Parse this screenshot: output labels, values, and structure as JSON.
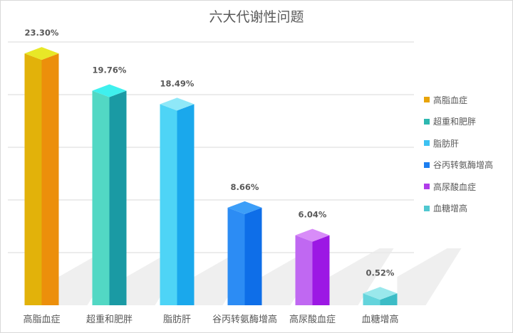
{
  "chart_data": {
    "type": "bar",
    "title": "六大代谢性问题",
    "xlabel": "",
    "ylabel": "",
    "ylim": [
      0,
      25
    ],
    "grid": true,
    "legend_position": "right",
    "categories": [
      "高脂血症",
      "超重和肥胖",
      "脂肪肝",
      "谷丙转氨酶增高",
      "高尿酸血症",
      "血糖增高"
    ],
    "values": [
      23.3,
      19.76,
      18.49,
      8.66,
      6.04,
      0.52
    ],
    "data_labels": [
      "23.30%",
      "19.76%",
      "18.49%",
      "8.66%",
      "6.04%",
      "0.52%"
    ],
    "colors": [
      {
        "top": "#e8e827",
        "front": "#e2b20a",
        "side": "#ec8f0b",
        "legend": "#e8a40a"
      },
      {
        "top": "#3ff0ee",
        "front": "#52d8c4",
        "side": "#1a9aa4",
        "legend": "#2db8b0"
      },
      {
        "top": "#8fe8f8",
        "front": "#4ed4f6",
        "side": "#1aa8ec",
        "legend": "#3dc2f2"
      },
      {
        "top": "#3c9ef8",
        "front": "#2c8cf4",
        "side": "#0e6ee8",
        "legend": "#1c7ef0"
      },
      {
        "top": "#d88cf8",
        "front": "#c068f2",
        "side": "#9c18e4",
        "legend": "#b03cea"
      },
      {
        "top": "#9ae8ec",
        "front": "#64d4dc",
        "side": "#3cbcc6",
        "legend": "#50c8d0"
      }
    ]
  }
}
